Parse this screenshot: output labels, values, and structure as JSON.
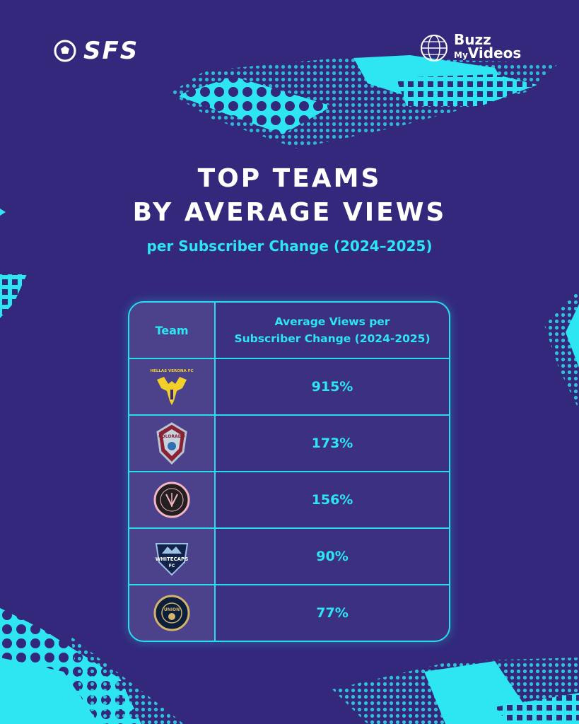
{
  "brand_left": {
    "logo_text": "SFS",
    "icon": "soccer-ball-icon"
  },
  "brand_right": {
    "line1": "Buzz",
    "line2_small": "My",
    "line2": "Videos",
    "icon": "globe-icon"
  },
  "title_line1": "TOP TEAMS",
  "title_line2": "BY AVERAGE VIEWS",
  "subtitle": "per Subscriber Change (2024–2025)",
  "colors": {
    "background": "#33287c",
    "accent": "#29dcf0",
    "text": "#ffffff"
  },
  "chart_data": {
    "type": "table",
    "columns": [
      "Team",
      "Average Views per",
      "Subscriber Change (2024-2025)"
    ],
    "rows": [
      {
        "logo": "hellas-verona-logo",
        "logo_text": "HELLAS VERONA FC",
        "value": "915%"
      },
      {
        "logo": "colorado-rapids-logo",
        "logo_text": "COLORADO",
        "value": "173%"
      },
      {
        "logo": "inter-miami-logo",
        "logo_text": "",
        "value": "156%"
      },
      {
        "logo": "vancouver-whitecaps-logo",
        "logo_text": "WHITECAPS",
        "logo_text2": "FC",
        "value": "90%"
      },
      {
        "logo": "philadelphia-union-logo",
        "logo_text": "UNION",
        "value": "77%"
      }
    ]
  }
}
